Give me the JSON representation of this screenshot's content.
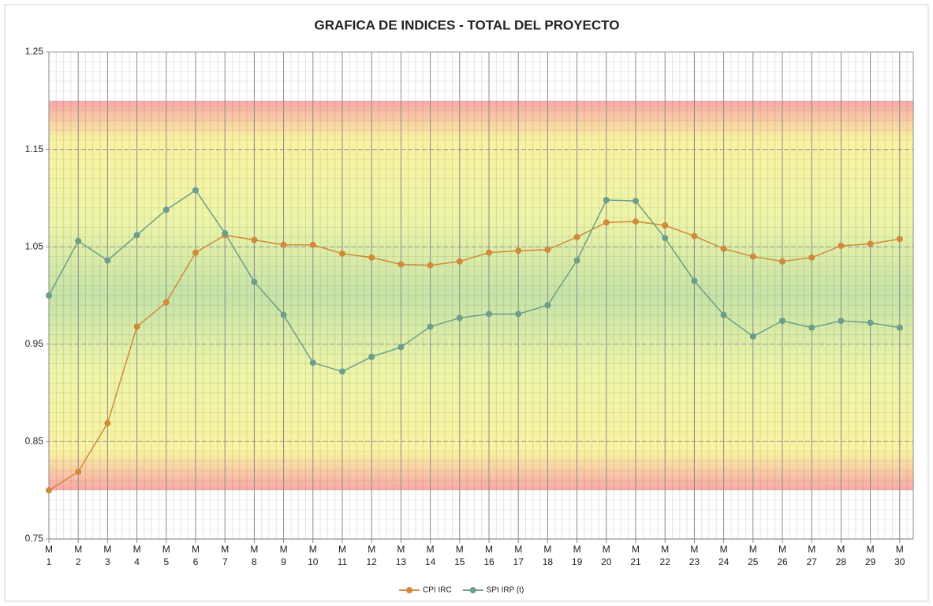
{
  "chart_data": {
    "type": "line",
    "title": "GRAFICA DE INDICES - TOTAL DEL PROYECTO",
    "categories": [
      "M\n1",
      "M\n2",
      "M\n3",
      "M\n4",
      "M\n5",
      "M\n6",
      "M\n7",
      "M\n8",
      "M\n9",
      "M\n10",
      "M\n11",
      "M\n12",
      "M\n13",
      "M\n14",
      "M\n15",
      "M\n16",
      "M\n17",
      "M\n18",
      "M\n19",
      "M\n20",
      "M\n21",
      "M\n22",
      "M\n23",
      "M\n24",
      "M\n25",
      "M\n26",
      "M\n27",
      "M\n28",
      "M\n29",
      "M\n30"
    ],
    "series": [
      {
        "name": "CPI IRC",
        "color": "#d08a3c",
        "values": [
          0.8,
          0.819,
          0.869,
          0.968,
          0.993,
          1.044,
          1.062,
          1.057,
          1.052,
          1.052,
          1.043,
          1.039,
          1.032,
          1.031,
          1.035,
          1.044,
          1.046,
          1.047,
          1.06,
          1.075,
          1.076,
          1.072,
          1.061,
          1.048,
          1.04,
          1.035,
          1.039,
          1.051,
          1.053,
          1.058
        ]
      },
      {
        "name": "SPI IRP (t)",
        "color": "#6b9e8c",
        "values": [
          1.0,
          1.056,
          1.036,
          1.062,
          1.088,
          1.108,
          1.064,
          1.014,
          0.98,
          0.931,
          0.922,
          0.937,
          0.947,
          0.968,
          0.977,
          0.981,
          0.981,
          0.99,
          1.036,
          1.098,
          1.097,
          1.059,
          1.015,
          0.98,
          0.958,
          0.974,
          0.967,
          0.974,
          0.972,
          0.967
        ]
      }
    ],
    "ylim": [
      0.75,
      1.25
    ],
    "yticks": [
      0.75,
      0.85,
      0.95,
      1.05,
      1.15,
      1.25
    ],
    "grid": true,
    "legend": "bottom"
  }
}
